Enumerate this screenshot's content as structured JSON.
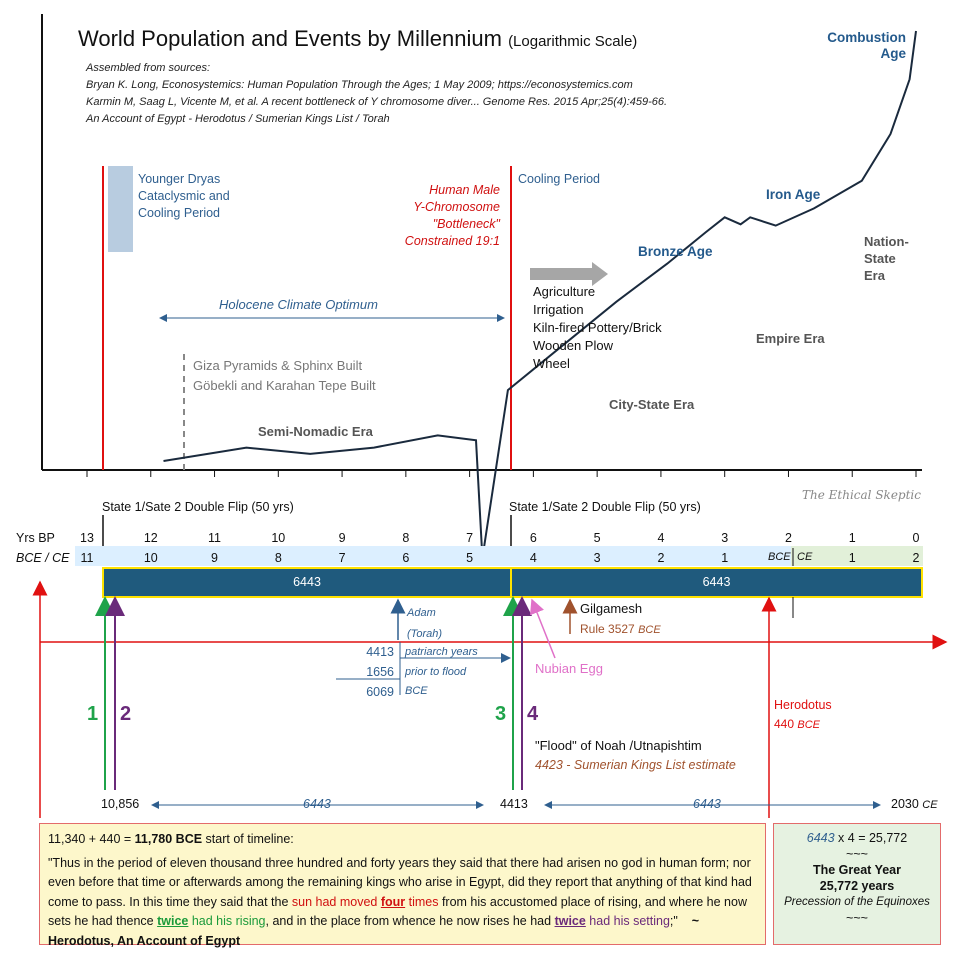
{
  "title": "World Population and Events by Millennium",
  "subtitle": "(Logarithmic Scale)",
  "sources": [
    "Assembled from sources:",
    "Bryan K. Long, Econosystemics: Human Population Through the Ages; 1 May 2009; https://econosystemics.com",
    "Karmin M, Saag L, Vicente M, et al. A recent bottleneck of Y chromosome diver... Genome Res. 2015 Apr;25(4):459-66.",
    "An Account of Egypt - Herodotus / Sumerian Kings List / Torah"
  ],
  "watermark": "The Ethical Skeptic",
  "annotations": {
    "younger_dryas": [
      "Younger Dryas",
      "Cataclysmic and",
      "Cooling Period"
    ],
    "bottleneck": [
      "Human Male",
      "Y-Chromosome",
      "\"Bottleneck\"",
      "Constrained 19:1"
    ],
    "cooling": "Cooling Period",
    "holocene": "Holocene Climate Optimum",
    "innovations": [
      "Agriculture",
      "Irrigation",
      "Kiln-fired Pottery/Brick",
      "Wooden Plow",
      "Wheel"
    ],
    "pyramids": [
      "Giza Pyramids & Sphinx Built",
      "Göbekli and Karahan Tepe Built"
    ],
    "eras": {
      "semi_nomadic": "Semi-Nomadic Era",
      "city_state": "City-State Era",
      "empire": "Empire Era",
      "nation_state": [
        "Nation-",
        "State",
        "Era"
      ]
    },
    "ages": {
      "bronze": "Bronze Age",
      "iron": "Iron Age",
      "combustion": [
        "Combustion",
        "Age"
      ]
    }
  },
  "chart_data": {
    "type": "line",
    "title": "World Population and Events by Millennium",
    "subtitle": "(Logarithmic Scale)",
    "x_unit": "Yrs BP",
    "y_scale": "log",
    "xlim": [
      13.5,
      -0.1
    ],
    "points": [
      {
        "x": 11.8,
        "y": 2.0
      },
      {
        "x": 10.5,
        "y": 2.6
      },
      {
        "x": 9.5,
        "y": 2.3
      },
      {
        "x": 8.5,
        "y": 2.6
      },
      {
        "x": 7.5,
        "y": 3.3
      },
      {
        "x": 6.9,
        "y": 3.0
      },
      {
        "x": 6.8,
        "y": 0.3
      },
      {
        "x": 6.4,
        "y": 8.0
      },
      {
        "x": 5.5,
        "y": 20
      },
      {
        "x": 4.7,
        "y": 45
      },
      {
        "x": 3.9,
        "y": 95
      },
      {
        "x": 3.3,
        "y": 175
      },
      {
        "x": 3.0,
        "y": 235
      },
      {
        "x": 2.75,
        "y": 205
      },
      {
        "x": 2.6,
        "y": 235
      },
      {
        "x": 2.2,
        "y": 200
      },
      {
        "x": 1.6,
        "y": 280
      },
      {
        "x": 0.85,
        "y": 480
      },
      {
        "x": 0.4,
        "y": 1200
      },
      {
        "x": 0.1,
        "y": 3500
      },
      {
        "x": 0.0,
        "y": 9000
      }
    ]
  },
  "timeline": {
    "flip_label": "State 1/Sate 2 Double Flip (50 yrs)",
    "bp_label": "Yrs BP",
    "bce_ce_label": "BCE / CE",
    "bp_ticks": [
      {
        "label": "13",
        "v": 13
      },
      {
        "label": "12",
        "v": 12
      },
      {
        "label": "11",
        "v": 11
      },
      {
        "label": "10",
        "v": 10
      },
      {
        "label": "9",
        "v": 9
      },
      {
        "label": "8",
        "v": 8
      },
      {
        "label": "7",
        "v": 7
      },
      {
        "label": "6",
        "v": 6
      },
      {
        "label": "5",
        "v": 5
      },
      {
        "label": "4",
        "v": 4
      },
      {
        "label": "3",
        "v": 3
      },
      {
        "label": "2",
        "v": 2
      },
      {
        "label": "1",
        "v": 1
      },
      {
        "label": "0",
        "v": 0
      }
    ],
    "bce_ticks": [
      {
        "label": "11",
        "v": 13
      },
      {
        "label": "10",
        "v": 12
      },
      {
        "label": "9",
        "v": 11
      },
      {
        "label": "8",
        "v": 10
      },
      {
        "label": "7",
        "v": 9
      },
      {
        "label": "6",
        "v": 8
      },
      {
        "label": "5",
        "v": 7
      },
      {
        "label": "4",
        "v": 6
      },
      {
        "label": "3",
        "v": 5
      },
      {
        "label": "2",
        "v": 4
      },
      {
        "label": "1",
        "v": 3
      },
      {
        "label": "1",
        "v": 1
      },
      {
        "label": "2",
        "v": 0
      }
    ],
    "bce_tag": "BCE",
    "ce_tag": "CE",
    "period_left": "6443",
    "period_right": "6443",
    "adam": [
      "Adam",
      "(Torah)"
    ],
    "patriarch": {
      "n1": "4413",
      "n2": "1656",
      "n3": "6069",
      "t1": "patriarch years",
      "t2": "prior to flood",
      "t3": "BCE"
    },
    "gilgamesh": {
      "name": "Gilgamesh",
      "rule": "Rule 3527",
      "bce": "BCE"
    },
    "nubian": "Nubian Egg",
    "herodotus": {
      "name": "Herodotus",
      "year": "440",
      "bce": "BCE"
    },
    "flood": {
      "line1": "\"Flood\" of Noah /Utnapishtim",
      "line2": "4423 - Sumerian Kings List estimate"
    },
    "markers": {
      "m1": "1",
      "m2": "2",
      "m3": "3",
      "m4": "4"
    },
    "bottom": {
      "left": "10,856",
      "span1": "6443",
      "mid": "4413",
      "span2": "6443",
      "right": "2030",
      "ce": "CE"
    }
  },
  "quote_box": {
    "calc_prefix": "11,340 + 440 = ",
    "calc_bold": "11,780  BCE",
    "calc_suffix": " start of timeline:",
    "q1": "\"Thus in the period of eleven thousand three hundred and forty years they said that there had arisen no god in human form; nor even before that time or afterwards among the remaining kings who arise in Egypt, did they report that anything of that kind had come to pass. In this time they said that the ",
    "q_sun": "sun had moved ",
    "q_four": "four",
    "q_times": " times",
    "q2": " from his accustomed place of rising, and where he now sets he had thence ",
    "q_twice1": "twice",
    "q_had_rising": " had his rising",
    "q3": ", and in the place from whence he now rises he had ",
    "q_twice2": "twice",
    "q_had_setting": " had his setting",
    "q4": ";\"",
    "attribution": "~ Herodotus, An Account of Egypt"
  },
  "great_year": {
    "l1_num": "6443",
    "l1_rest": " x 4 =  25,772",
    "tilde1": "~~~",
    "name": "The Great Year",
    "years": "25,772  years",
    "precession": "Precession of the Equinoxes",
    "tilde2": "~~~"
  },
  "colors": {
    "bar_fill": "#1f5a7d",
    "bar_border": "#ffe200",
    "red": "#e01010",
    "green": "#1fa34a",
    "purple": "#6a2a7a",
    "blue_text": "#245a8c",
    "cell_blue": "#dcefff",
    "cell_green": "#e2f0d9"
  }
}
